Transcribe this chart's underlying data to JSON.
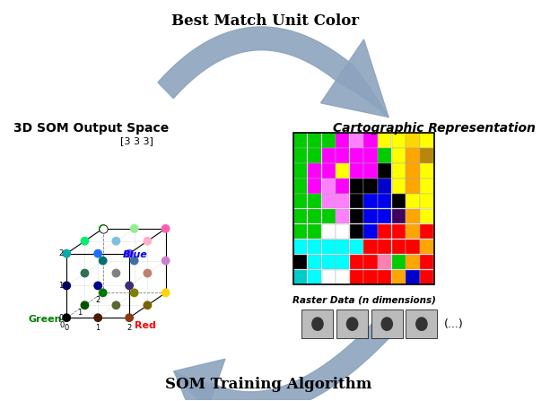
{
  "title_top": "Best Match Unit Color",
  "title_bottom": "SOM Training Algorithm",
  "title_left": "3D SOM Output Space",
  "subtitle_left": "[3 3 3]",
  "title_right": "Cartographic Representation",
  "label_raster": "Raster Data (n dimensions)",
  "label_ellipsis": "(...)",
  "label_blue": "Blue",
  "label_green": "Green",
  "label_red": "Red",
  "bg_color": "#ffffff",
  "arrow_color": "#8da4be",
  "som_colors": [
    "#000000",
    "#4b1a00",
    "#8b3a0f",
    "#005500",
    "#556b2f",
    "#7a6200",
    "#007700",
    "#808000",
    "#ffd700",
    "#000060",
    "#00008b",
    "#3d2e7a",
    "#2e7057",
    "#808080",
    "#c08070",
    "#007070",
    "#4070a0",
    "#cc80cc",
    "#00aaaa",
    "#1e70ff",
    "#8060cc",
    "#00ee70",
    "#80c0dd",
    "#ffb0c8",
    "#00ee00",
    "#90ee90",
    "#ff60b0"
  ],
  "cartographic_grid": [
    [
      "#00cc00",
      "#00cc00",
      "#00cc00",
      "#ff00ff",
      "#ff80ff",
      "#ff00ff",
      "#ffff00",
      "#ffff00",
      "#ffd700",
      "#ffff00"
    ],
    [
      "#00cc00",
      "#00cc00",
      "#ff00ff",
      "#ff00ff",
      "#ff00ff",
      "#ff00ff",
      "#00cc00",
      "#ffff00",
      "#ffa500",
      "#b8860b"
    ],
    [
      "#00cc00",
      "#ff00ff",
      "#ff00ff",
      "#ffff00",
      "#ff00ff",
      "#ff00ff",
      "#000000",
      "#ffff00",
      "#ffa500",
      "#ffff00"
    ],
    [
      "#00cc00",
      "#ff00ff",
      "#ff80ff",
      "#ff00ff",
      "#000000",
      "#000000",
      "#0000cc",
      "#ffff00",
      "#ffa500",
      "#ffff00"
    ],
    [
      "#00cc00",
      "#00cc00",
      "#ff80ff",
      "#ff80ff",
      "#000000",
      "#0000ee",
      "#0000ee",
      "#000000",
      "#ffff00",
      "#ffff00"
    ],
    [
      "#00cc00",
      "#00cc00",
      "#00cc00",
      "#ff80ff",
      "#000000",
      "#0000ee",
      "#0000ee",
      "#400060",
      "#ffa500",
      "#ffff00"
    ],
    [
      "#00cc00",
      "#00cc00",
      "#ffffff",
      "#ffffff",
      "#000000",
      "#0000ee",
      "#ff0000",
      "#ff0000",
      "#ffa500",
      "#ff0000"
    ],
    [
      "#00ffff",
      "#00ffff",
      "#00ffff",
      "#00ffff",
      "#00ffff",
      "#ff0000",
      "#ff0000",
      "#ff0000",
      "#ff0000",
      "#ffa500"
    ],
    [
      "#000000",
      "#00ffff",
      "#00ffff",
      "#00ffff",
      "#ff0000",
      "#ff0000",
      "#ff80b0",
      "#00cc00",
      "#ffa500",
      "#ff0000"
    ],
    [
      "#00cccc",
      "#00ffff",
      "#ffffff",
      "#ffffff",
      "#ff0000",
      "#ff0000",
      "#ff0000",
      "#ffa500",
      "#0000cc",
      "#ff0000"
    ]
  ]
}
